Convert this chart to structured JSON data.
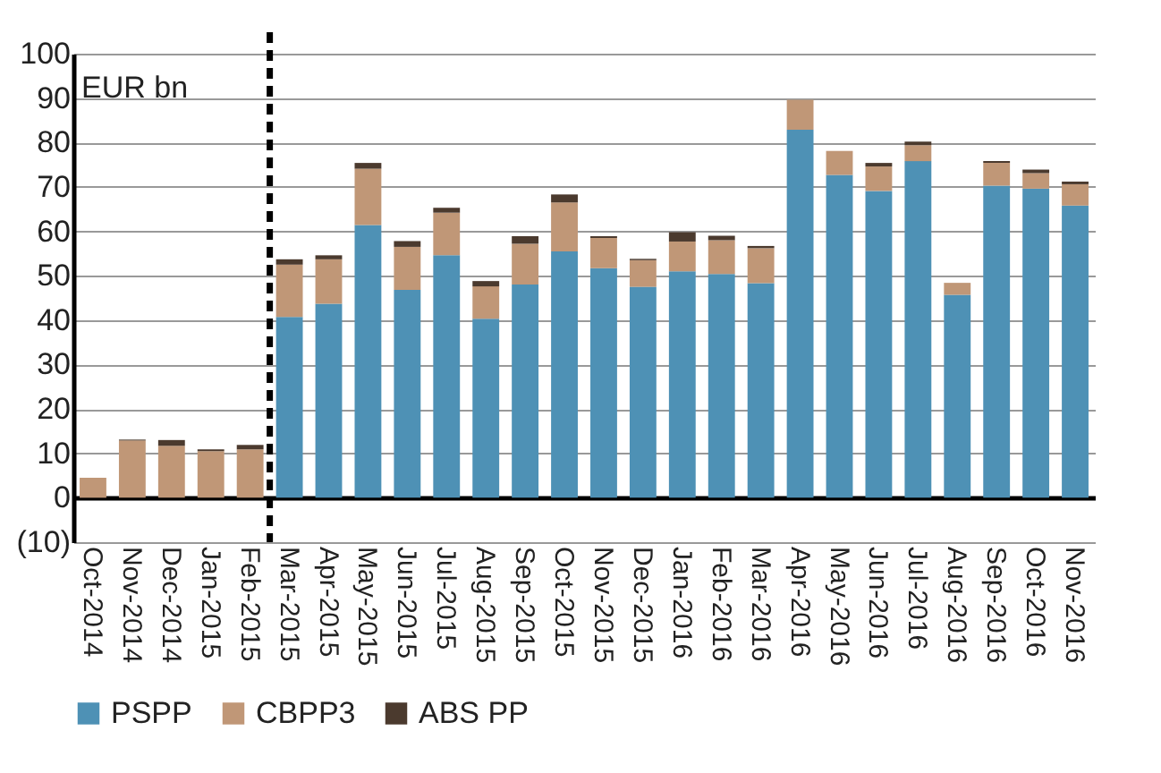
{
  "chart_data": {
    "type": "bar",
    "stacked": true,
    "ylabel": "EUR bn",
    "categories": [
      "Oct-2014",
      "Nov-2014",
      "Dec-2014",
      "Jan-2015",
      "Feb-2015",
      "Mar-2015",
      "Apr-2015",
      "May-2015",
      "Jun-2015",
      "Jul-2015",
      "Aug-2015",
      "Sep-2015",
      "Oct-2015",
      "Nov-2015",
      "Dec-2015",
      "Jan-2016",
      "Feb-2016",
      "Mar-2016",
      "Apr-2016",
      "May-2016",
      "Jun-2016",
      "Jul-2016",
      "Aug-2016",
      "Sep-2016",
      "Oct-2016",
      "Nov-2016"
    ],
    "series": [
      {
        "name": "PSPP",
        "color": "#4e91b5",
        "values": [
          0,
          0,
          0,
          0,
          0,
          40.7,
          43.7,
          61.4,
          46.8,
          54.6,
          40.3,
          48,
          55.5,
          51.7,
          47.5,
          51,
          50.4,
          48.3,
          82.9,
          72.7,
          69.1,
          75.8,
          45.7,
          70.3,
          69.6,
          65.8
        ]
      },
      {
        "name": "CBPP3",
        "color": "#c09777",
        "values": [
          4.5,
          12.9,
          11.7,
          10.5,
          10.9,
          11.8,
          10,
          12.7,
          9.7,
          9.6,
          7.3,
          9.2,
          11,
          6.8,
          6,
          6.7,
          7.6,
          7.9,
          6.7,
          5.4,
          5.5,
          3.6,
          2.7,
          5.1,
          3.5,
          4.8
        ]
      },
      {
        "name": "ABS PP",
        "color": "#4b3a2e",
        "values": [
          0,
          0.2,
          1.3,
          0.4,
          1,
          1.2,
          0.9,
          1.3,
          1.3,
          1.1,
          1.2,
          1.7,
          1.8,
          0.4,
          0.3,
          2.1,
          1,
          0.5,
          0,
          0,
          0.8,
          0.8,
          0,
          0.4,
          0.8,
          0.6
        ]
      }
    ],
    "ylim": [
      -10,
      100
    ],
    "yticks": [
      {
        "value": -10,
        "label": "(10)"
      },
      0,
      10,
      20,
      30,
      40,
      50,
      60,
      70,
      80,
      90,
      100
    ],
    "grid": "y",
    "legend": "bottom",
    "ref_lines": [
      {
        "axis": "x",
        "value": "Mar-2015",
        "color": "#000000",
        "line_style": "dashed"
      }
    ]
  }
}
